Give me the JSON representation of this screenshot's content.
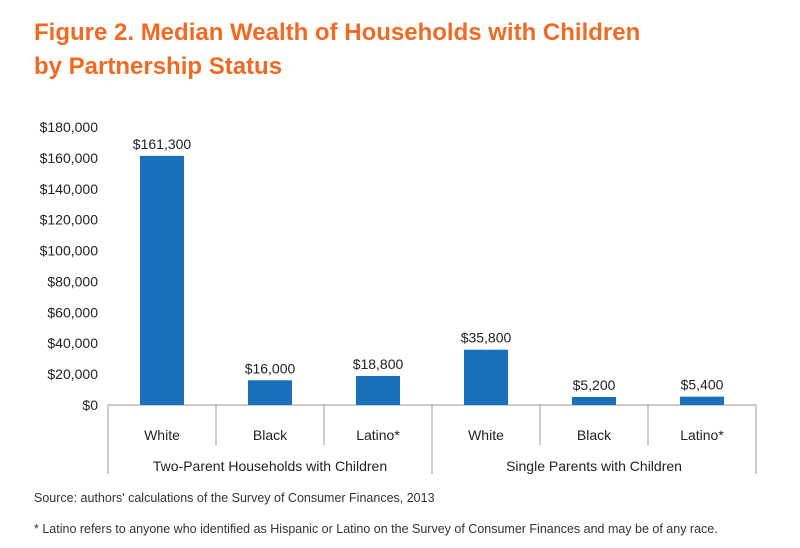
{
  "chart_data": {
    "type": "bar",
    "title_line1": "Figure 2. Median Wealth of Households with Children",
    "title_line2": "by Partnership Status",
    "groups": [
      {
        "label": "Two-Parent Households with Children",
        "categories": [
          "White",
          "Black",
          "Latino*"
        ],
        "values": [
          161300,
          16000,
          18800
        ]
      },
      {
        "label": "Single Parents with Children",
        "categories": [
          "White",
          "Black",
          "Latino*"
        ],
        "values": [
          35800,
          5200,
          5400
        ]
      }
    ],
    "data_labels": [
      "$161,300",
      "$16,000",
      "$18,800",
      "$35,800",
      "$5,200",
      "$5,400"
    ],
    "yticks": [
      "$0",
      "$20,000",
      "$40,000",
      "$60,000",
      "$80,000",
      "$100,000",
      "$120,000",
      "$140,000",
      "$160,000",
      "$180,000"
    ],
    "ylim": [
      0,
      180000
    ],
    "bar_color": "#1a6fba",
    "title_color": "#f26a21",
    "grid": false
  },
  "footer": {
    "source": "Source: authors' calculations of the Survey of Consumer Finances, 2013",
    "note": "* Latino refers to anyone who identified as Hispanic or Latino on the Survey of Consumer Finances and may be of any race."
  }
}
